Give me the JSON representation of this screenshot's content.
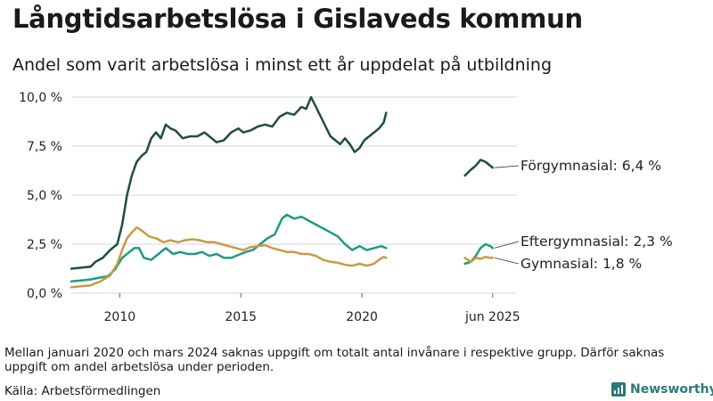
{
  "title": "Långtidsarbetslösa i Gislaveds kommun",
  "subtitle": "Andel som varit arbetslösa i minst ett år uppdelat på utbildning",
  "note": "Mellan januari 2020 och mars 2024 saknas uppgift om totalt antal invånare i respektive grupp. Därför saknas uppgift om andel arbetslösa under perioden.",
  "source": "Källa: Arbetsförmedlingen",
  "logo_text": "Newsworthy",
  "chart_data": {
    "type": "line",
    "title": "Långtidsarbetslösa i Gislaveds kommun",
    "subtitle": "Andel som varit arbetslösa i minst ett år uppdelat på utbildning",
    "x_ticks": [
      {
        "x": 2010,
        "label": "2010"
      },
      {
        "x": 2015,
        "label": "2015"
      },
      {
        "x": 2020,
        "label": "2020"
      },
      {
        "x": 2025.4,
        "label": "jun 2025"
      }
    ],
    "y_ticks": [
      {
        "y": 0,
        "label": "0,0 %"
      },
      {
        "y": 2.5,
        "label": "2,5 %"
      },
      {
        "y": 5,
        "label": "5,0 %"
      },
      {
        "y": 7.5,
        "label": "7,5 %"
      },
      {
        "y": 10,
        "label": "10,0 %"
      }
    ],
    "xlim": [
      2008.0,
      2026.4
    ],
    "ylim": [
      0,
      10
    ],
    "grid": "horizontal",
    "series": [
      {
        "name": "Förgymnasial",
        "end_label": "Förgymnasial: 6,4 %",
        "color": "#1f4d3f",
        "segments": [
          [
            [
              2008.0,
              1.25
            ],
            [
              2008.4,
              1.3
            ],
            [
              2008.8,
              1.35
            ],
            [
              2009.0,
              1.6
            ],
            [
              2009.3,
              1.8
            ],
            [
              2009.6,
              2.2
            ],
            [
              2009.9,
              2.5
            ],
            [
              2010.1,
              3.5
            ],
            [
              2010.3,
              5.0
            ],
            [
              2010.5,
              6.0
            ],
            [
              2010.7,
              6.7
            ],
            [
              2010.9,
              7.0
            ],
            [
              2011.1,
              7.2
            ],
            [
              2011.3,
              7.9
            ],
            [
              2011.5,
              8.2
            ],
            [
              2011.7,
              7.9
            ],
            [
              2011.9,
              8.6
            ],
            [
              2012.1,
              8.4
            ],
            [
              2012.3,
              8.3
            ],
            [
              2012.6,
              7.9
            ],
            [
              2012.9,
              8.0
            ],
            [
              2013.2,
              8.0
            ],
            [
              2013.5,
              8.2
            ],
            [
              2013.8,
              7.9
            ],
            [
              2014.0,
              7.7
            ],
            [
              2014.3,
              7.8
            ],
            [
              2014.6,
              8.2
            ],
            [
              2014.9,
              8.4
            ],
            [
              2015.1,
              8.2
            ],
            [
              2015.4,
              8.3
            ],
            [
              2015.7,
              8.5
            ],
            [
              2016.0,
              8.6
            ],
            [
              2016.3,
              8.5
            ],
            [
              2016.6,
              9.0
            ],
            [
              2016.9,
              9.2
            ],
            [
              2017.2,
              9.1
            ],
            [
              2017.5,
              9.5
            ],
            [
              2017.7,
              9.4
            ],
            [
              2017.9,
              10.0
            ],
            [
              2018.1,
              9.5
            ],
            [
              2018.3,
              9.0
            ],
            [
              2018.5,
              8.5
            ],
            [
              2018.7,
              8.0
            ],
            [
              2018.9,
              7.8
            ],
            [
              2019.1,
              7.6
            ],
            [
              2019.3,
              7.9
            ],
            [
              2019.5,
              7.6
            ],
            [
              2019.7,
              7.2
            ],
            [
              2019.9,
              7.4
            ],
            [
              2020.1,
              7.8
            ],
            [
              2020.3,
              8.0
            ],
            [
              2020.5,
              8.2
            ],
            [
              2020.7,
              8.4
            ],
            [
              2020.9,
              8.7
            ],
            [
              2021.0,
              9.2
            ]
          ],
          [
            [
              2024.25,
              6.0
            ],
            [
              2024.5,
              6.3
            ],
            [
              2024.7,
              6.5
            ],
            [
              2024.9,
              6.8
            ],
            [
              2025.1,
              6.7
            ],
            [
              2025.3,
              6.5
            ],
            [
              2025.4,
              6.4
            ]
          ]
        ]
      },
      {
        "name": "Eftergymnasial",
        "end_label": "Eftergymnasial: 2,3 %",
        "color": "#1f9a83",
        "segments": [
          [
            [
              2008.0,
              0.6
            ],
            [
              2008.4,
              0.65
            ],
            [
              2008.8,
              0.7
            ],
            [
              2009.2,
              0.8
            ],
            [
              2009.5,
              0.85
            ],
            [
              2009.8,
              1.2
            ],
            [
              2010.1,
              1.8
            ],
            [
              2010.4,
              2.1
            ],
            [
              2010.6,
              2.3
            ],
            [
              2010.8,
              2.3
            ],
            [
              2011.0,
              1.8
            ],
            [
              2011.3,
              1.7
            ],
            [
              2011.6,
              2.0
            ],
            [
              2011.9,
              2.3
            ],
            [
              2012.2,
              2.0
            ],
            [
              2012.5,
              2.1
            ],
            [
              2012.8,
              2.0
            ],
            [
              2013.1,
              2.0
            ],
            [
              2013.4,
              2.1
            ],
            [
              2013.7,
              1.9
            ],
            [
              2014.0,
              2.0
            ],
            [
              2014.3,
              1.8
            ],
            [
              2014.6,
              1.8
            ],
            [
              2014.9,
              1.95
            ],
            [
              2015.2,
              2.1
            ],
            [
              2015.5,
              2.2
            ],
            [
              2015.8,
              2.5
            ],
            [
              2016.1,
              2.8
            ],
            [
              2016.4,
              3.0
            ],
            [
              2016.7,
              3.8
            ],
            [
              2016.9,
              4.0
            ],
            [
              2017.2,
              3.8
            ],
            [
              2017.5,
              3.9
            ],
            [
              2017.8,
              3.7
            ],
            [
              2018.1,
              3.5
            ],
            [
              2018.4,
              3.3
            ],
            [
              2018.7,
              3.1
            ],
            [
              2019.0,
              2.9
            ],
            [
              2019.3,
              2.5
            ],
            [
              2019.6,
              2.2
            ],
            [
              2019.9,
              2.4
            ],
            [
              2020.2,
              2.2
            ],
            [
              2020.5,
              2.3
            ],
            [
              2020.8,
              2.4
            ],
            [
              2021.0,
              2.3
            ]
          ],
          [
            [
              2024.25,
              1.5
            ],
            [
              2024.5,
              1.6
            ],
            [
              2024.7,
              1.9
            ],
            [
              2024.9,
              2.3
            ],
            [
              2025.1,
              2.5
            ],
            [
              2025.3,
              2.4
            ],
            [
              2025.4,
              2.3
            ]
          ]
        ]
      },
      {
        "name": "Gymnasial",
        "end_label": "Gymnasial: 1,8 %",
        "color": "#c99a45",
        "segments": [
          [
            [
              2008.0,
              0.3
            ],
            [
              2008.4,
              0.35
            ],
            [
              2008.8,
              0.4
            ],
            [
              2009.2,
              0.6
            ],
            [
              2009.6,
              0.9
            ],
            [
              2009.9,
              1.5
            ],
            [
              2010.1,
              2.2
            ],
            [
              2010.3,
              2.8
            ],
            [
              2010.5,
              3.1
            ],
            [
              2010.7,
              3.35
            ],
            [
              2010.9,
              3.2
            ],
            [
              2011.2,
              2.9
            ],
            [
              2011.5,
              2.8
            ],
            [
              2011.8,
              2.6
            ],
            [
              2012.1,
              2.7
            ],
            [
              2012.4,
              2.6
            ],
            [
              2012.7,
              2.7
            ],
            [
              2013.0,
              2.75
            ],
            [
              2013.3,
              2.7
            ],
            [
              2013.6,
              2.6
            ],
            [
              2013.9,
              2.6
            ],
            [
              2014.2,
              2.5
            ],
            [
              2014.5,
              2.4
            ],
            [
              2014.8,
              2.3
            ],
            [
              2015.1,
              2.2
            ],
            [
              2015.4,
              2.35
            ],
            [
              2015.7,
              2.4
            ],
            [
              2016.0,
              2.45
            ],
            [
              2016.3,
              2.3
            ],
            [
              2016.6,
              2.2
            ],
            [
              2016.9,
              2.1
            ],
            [
              2017.2,
              2.1
            ],
            [
              2017.5,
              2.0
            ],
            [
              2017.8,
              2.0
            ],
            [
              2018.1,
              1.9
            ],
            [
              2018.4,
              1.7
            ],
            [
              2018.7,
              1.6
            ],
            [
              2019.0,
              1.55
            ],
            [
              2019.3,
              1.45
            ],
            [
              2019.6,
              1.4
            ],
            [
              2019.9,
              1.5
            ],
            [
              2020.2,
              1.4
            ],
            [
              2020.5,
              1.5
            ],
            [
              2020.7,
              1.7
            ],
            [
              2020.9,
              1.85
            ],
            [
              2021.0,
              1.8
            ]
          ],
          [
            [
              2024.25,
              1.8
            ],
            [
              2024.5,
              1.6
            ],
            [
              2024.7,
              1.8
            ],
            [
              2024.9,
              1.75
            ],
            [
              2025.1,
              1.85
            ],
            [
              2025.3,
              1.8
            ],
            [
              2025.4,
              1.8
            ]
          ]
        ]
      }
    ]
  }
}
